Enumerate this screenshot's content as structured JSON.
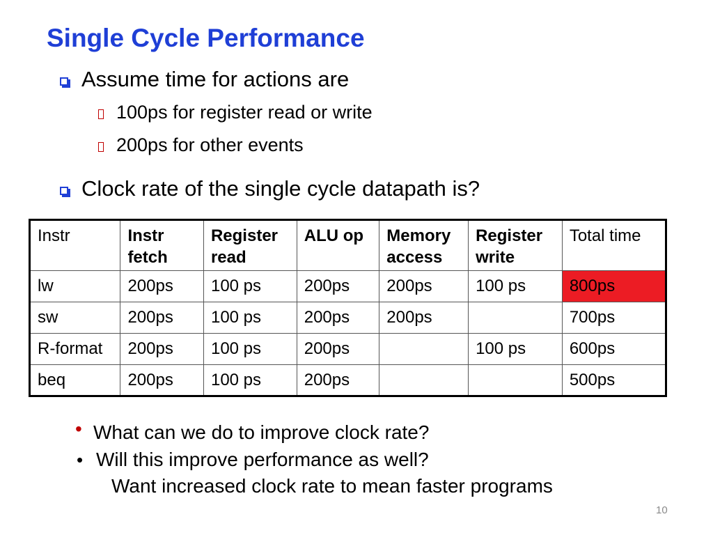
{
  "slide": {
    "title": "Single Cycle Performance",
    "bullets": {
      "b1": "Assume time for actions are",
      "b1a": "100ps for register read or write",
      "b1b": "200ps for other events",
      "b2": "Clock rate of the single cycle datapath is?"
    },
    "lower_bullets": {
      "q1": "What can we do to improve clock rate?",
      "q2": "Will this improve performance as well?",
      "q2_sub": "Want increased clock rate to mean faster programs"
    },
    "page_number": "10"
  },
  "table": {
    "headers": [
      "Instr",
      "Instr fetch",
      "Register read",
      "ALU op",
      "Memory access",
      "Register write",
      "Total time"
    ],
    "rows": [
      [
        "lw",
        "200ps",
        "100 ps",
        "200ps",
        "200ps",
        "100 ps",
        "800ps"
      ],
      [
        "sw",
        "200ps",
        "100 ps",
        "200ps",
        "200ps",
        "",
        "700ps"
      ],
      [
        "R-format",
        "200ps",
        "100 ps",
        "200ps",
        "",
        "100 ps",
        "600ps"
      ],
      [
        "beq",
        "200ps",
        "100 ps",
        "200ps",
        "",
        "",
        "500ps"
      ]
    ],
    "highlight_color": "#ec1c24"
  },
  "colors": {
    "title": "#1f3fd6",
    "bullet_box": "#1f3fd6",
    "red_bullet": "#c00000"
  }
}
